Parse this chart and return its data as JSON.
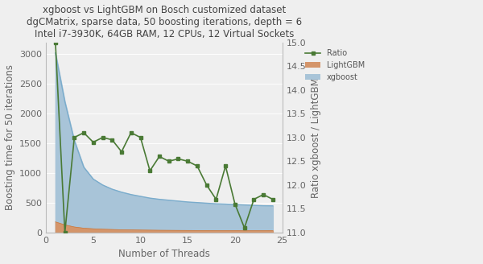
{
  "title_line1": "xgboost vs LightGBM on Bosch customized dataset",
  "title_line2": "dgCMatrix, sparse data, 50 boosting iterations, depth = 6",
  "title_line3": "Intel i7-3930K, 64GB RAM, 12 CPUs, 12 Virtual Sockets",
  "xlabel": "Number of Threads",
  "ylabel_left": "Boosting time for 50 iterations",
  "ylabel_right": "Ratio xgboost / LightGBM",
  "threads": [
    1,
    2,
    3,
    4,
    5,
    6,
    7,
    8,
    9,
    10,
    11,
    12,
    13,
    14,
    15,
    16,
    17,
    18,
    19,
    20,
    21,
    22,
    23,
    24
  ],
  "xgboost_smooth": [
    3020,
    2200,
    1550,
    1100,
    900,
    800,
    730,
    680,
    640,
    610,
    580,
    560,
    545,
    530,
    515,
    505,
    495,
    485,
    480,
    472,
    465,
    458,
    452,
    450
  ],
  "lightgbm_smooth": [
    180,
    130,
    95,
    75,
    65,
    58,
    53,
    49,
    46,
    44,
    42,
    40,
    39,
    38,
    37,
    36,
    36,
    35,
    35,
    35,
    34,
    34,
    34,
    35
  ],
  "ratio": [
    15.0,
    11.0,
    13.0,
    13.1,
    12.9,
    13.0,
    12.95,
    12.7,
    13.1,
    13.0,
    12.3,
    12.6,
    12.5,
    12.55,
    12.5,
    12.4,
    12.0,
    11.7,
    12.4,
    11.6,
    11.1,
    11.7,
    11.8,
    11.7
  ],
  "xgboost_color": "#A8C4D8",
  "lightgbm_color": "#D4956A",
  "ratio_color": "#4A7A35",
  "bg_color": "#EFEFEF",
  "ylim_left": [
    0,
    3200
  ],
  "ylim_right": [
    11,
    15
  ],
  "xlim": [
    0,
    25
  ],
  "title_fontsize": 8.5,
  "label_fontsize": 8.5,
  "tick_fontsize": 8
}
